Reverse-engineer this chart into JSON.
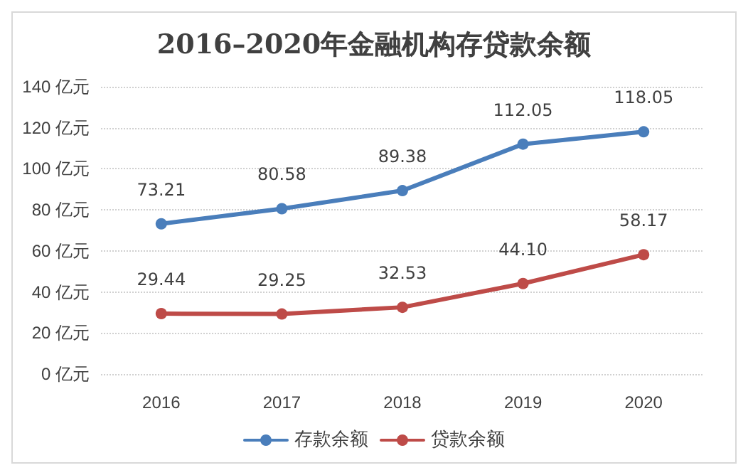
{
  "chart_data": {
    "type": "line",
    "title": "2016–2020年金融机构存贷款余额",
    "categories": [
      "2016",
      "2017",
      "2018",
      "2019",
      "2020"
    ],
    "series": [
      {
        "name": "存款余额",
        "color": "#4a7ebb",
        "values": [
          73.21,
          80.58,
          89.38,
          112.05,
          118.05
        ],
        "value_labels": [
          "73.21",
          "80.58",
          "89.38",
          "112.05",
          "118.05"
        ]
      },
      {
        "name": "贷款余额",
        "color": "#be4b48",
        "values": [
          29.44,
          29.25,
          32.53,
          44.1,
          58.17
        ],
        "value_labels": [
          "29.44",
          "29.25",
          "32.53",
          "44.10",
          "58.17"
        ]
      }
    ],
    "ylim": [
      0,
      140
    ],
    "yticks": [
      {
        "value": 0,
        "label": "0 亿元"
      },
      {
        "value": 20,
        "label": "20 亿元"
      },
      {
        "value": 40,
        "label": "40 亿元"
      },
      {
        "value": 60,
        "label": "60 亿元"
      },
      {
        "value": 80,
        "label": "80 亿元"
      },
      {
        "value": 100,
        "label": "100 亿元"
      },
      {
        "value": 120,
        "label": "120 亿元"
      },
      {
        "value": 140,
        "label": "140 亿元"
      }
    ],
    "grid": "y",
    "legend": "bottom",
    "marker": "circle",
    "line_style": "solid"
  }
}
